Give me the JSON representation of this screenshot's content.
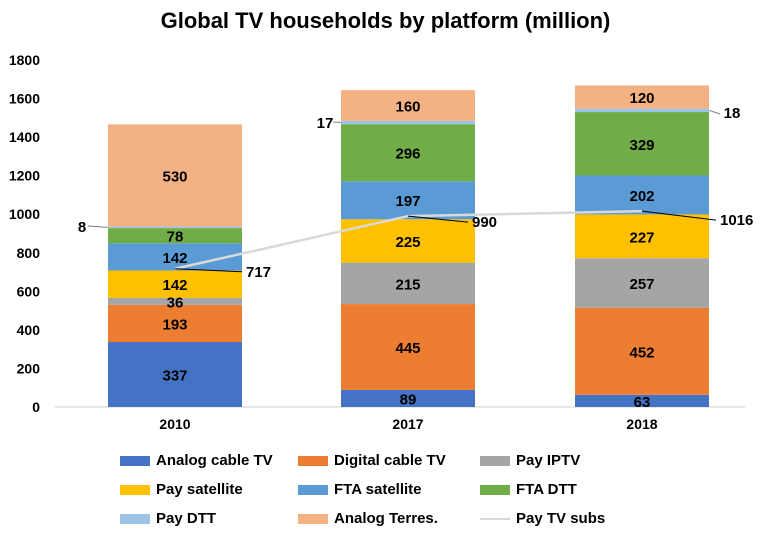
{
  "chart_data": {
    "type": "bar",
    "stacked": true,
    "title": "Global TV households by platform (million)",
    "categories": [
      "2010",
      "2017",
      "2018"
    ],
    "ylim": [
      0,
      1800
    ],
    "yticks": [
      "0",
      "200",
      "400",
      "600",
      "800",
      "1000",
      "1200",
      "1400",
      "1600",
      "1800"
    ],
    "grid": false,
    "legend_position": "bottom",
    "series": [
      {
        "name": "Analog cable TV",
        "color": "#4472C4",
        "values": [
          337,
          89,
          63
        ]
      },
      {
        "name": "Digital cable TV",
        "color": "#ED7D31",
        "values": [
          193,
          445,
          452
        ]
      },
      {
        "name": "Pay IPTV",
        "color": "#A5A5A5",
        "values": [
          36,
          215,
          257
        ]
      },
      {
        "name": "Pay satellite",
        "color": "#FFC000",
        "values": [
          142,
          225,
          227
        ]
      },
      {
        "name": "FTA satellite",
        "color": "#5B9BD5",
        "values": [
          142,
          197,
          202
        ]
      },
      {
        "name": "FTA DTT",
        "color": "#70AD47",
        "values": [
          78,
          296,
          329
        ]
      },
      {
        "name": "Pay DTT",
        "color": "#9DC3E6",
        "values": [
          8,
          17,
          18
        ]
      },
      {
        "name": "Analog Terres.",
        "color": "#F4B183",
        "values": [
          530,
          160,
          120
        ]
      }
    ],
    "line_series": {
      "name": "Pay TV subs",
      "color": "#D9D9D9",
      "values": [
        717,
        990,
        1016
      ]
    }
  }
}
